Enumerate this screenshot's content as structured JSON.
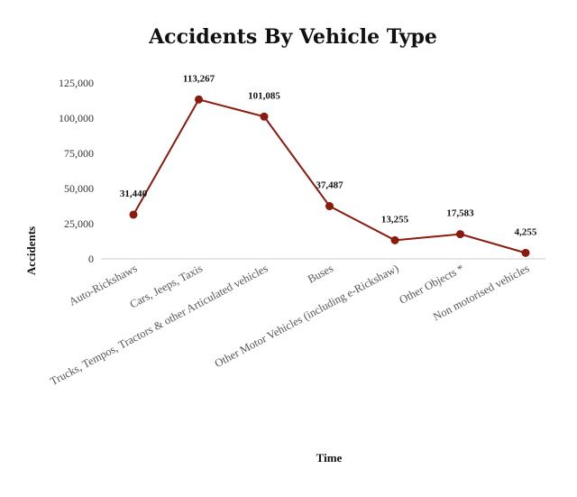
{
  "chart_data": {
    "type": "line",
    "title": "Accidents By Vehicle Type",
    "xlabel": "Time",
    "ylabel": "Accidents",
    "categories": [
      "Auto-Rickshaws",
      "Cars, Jeeps, Taxis",
      "Trucks, Tempos, Tractors & other Articulated vehicles",
      "Buses",
      "Other Motor Vehicles (including e-Rickshaw)",
      "Other Objects *",
      "Non motorised vehicles"
    ],
    "series": [
      {
        "values": [
          31440,
          113267,
          101085,
          37487,
          13255,
          17583,
          4255
        ],
        "labels": [
          "31,440",
          "113,267",
          "101,085",
          "37,487",
          "13,255",
          "17,583",
          "4,255"
        ]
      }
    ],
    "ylim": [
      0,
      125000
    ],
    "yticks": [
      0,
      25000,
      50000,
      75000,
      100000,
      125000
    ],
    "ytick_labels": [
      "0",
      "25,000",
      "50,000",
      "75,000",
      "100,000",
      "125,000"
    ],
    "grid": false,
    "legend": "none",
    "colors": {
      "series": "#8b1a0e"
    }
  }
}
